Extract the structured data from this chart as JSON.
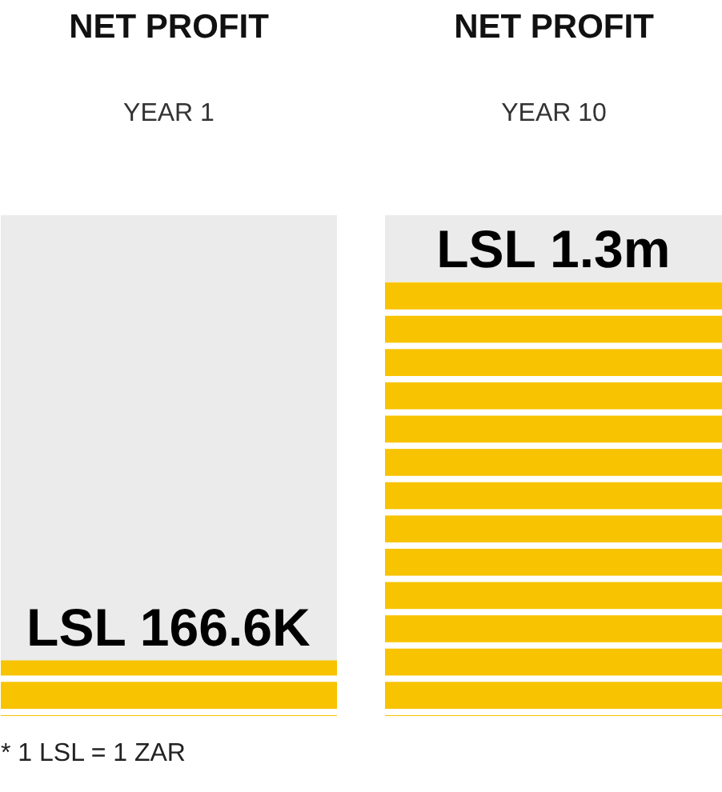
{
  "chart_data": {
    "type": "bar",
    "title": "NET PROFIT",
    "categories": [
      "YEAR 1",
      "YEAR 10"
    ],
    "values": [
      166600,
      1300000
    ],
    "value_labels": [
      "LSL 166.6K",
      "LSL 1.3m"
    ],
    "color": "#f8c300",
    "ylim": [
      0,
      1500000
    ],
    "tick_labels": "x",
    "annotations": [
      "* 1 LSL = 1 ZAR"
    ]
  }
}
